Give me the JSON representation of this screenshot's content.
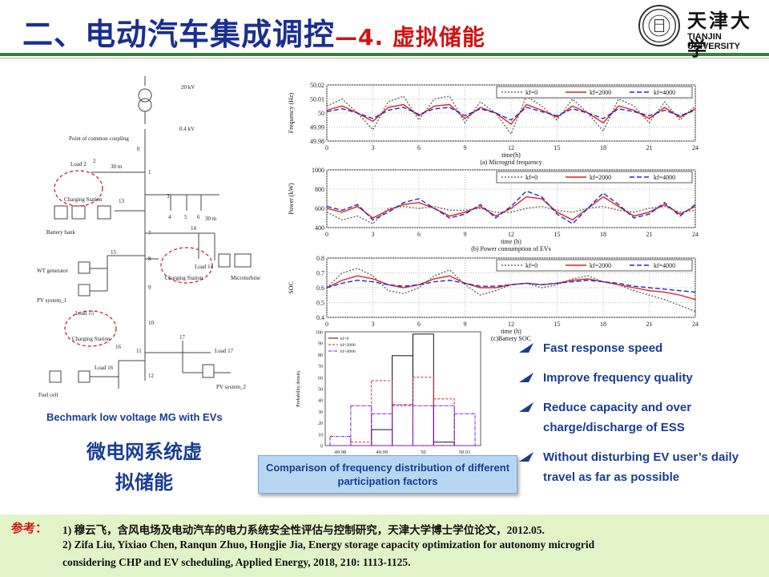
{
  "header": {
    "title": "二、电动汽车集成调控",
    "subtitle": "—4. 虚拟储能",
    "university_cn": "天津大学",
    "university_en": "TIANJIN UNIVERSITY",
    "accent_color": "#1a2f8f",
    "sub_color": "#d01414"
  },
  "schematic": {
    "caption": "Bechmark  low voltage MG with EVs",
    "labels": {
      "kv20": "20 kV",
      "kv04": "0.4 kV",
      "pcc": "Point of common coupling",
      "load2": "Load 2",
      "m30a": "30 m",
      "m30b": "30 m",
      "cs1": "Charging Station",
      "battery": "Battery bank",
      "load14": "Load 14",
      "cs2": "Charging Station",
      "microturbine": "Microturbine",
      "wt": "WT generator",
      "pv1": "PV system_1",
      "load15": "Load 15",
      "cs3": "Charging Station",
      "load17": "Load 17",
      "load16": "Load 16",
      "fuel": "Fuel cell",
      "pv2": "PV system_2"
    },
    "nodes": [
      "0",
      "1",
      "2",
      "3",
      "4",
      "5",
      "6",
      "7",
      "8",
      "9",
      "10",
      "11",
      "12",
      "13",
      "14",
      "15",
      "16",
      "17"
    ]
  },
  "cn_label_1": "微电网系统虚",
  "cn_label_2": "拟储能",
  "chart_data": [
    {
      "type": "line",
      "title": "(a) Microgrid frequency",
      "xlabel": "time(h)",
      "ylabel": "Frequency (Hz)",
      "xlim": [
        0,
        24
      ],
      "ylim": [
        49.98,
        50.02
      ],
      "xticks": [
        "0",
        "3",
        "6",
        "9",
        "12",
        "15",
        "18",
        "21",
        "24"
      ],
      "yticks": [
        "49.98",
        "49.99",
        "50",
        "50.01",
        "50.02"
      ],
      "legend_position": "top-right",
      "x": [
        0,
        1,
        2,
        3,
        4,
        5,
        6,
        7,
        8,
        9,
        10,
        11,
        12,
        13,
        14,
        15,
        16,
        17,
        18,
        19,
        20,
        21,
        22,
        23,
        24
      ],
      "series": [
        {
          "name": "kf=0",
          "color": "#666666",
          "dash": "2,2",
          "values": [
            50.005,
            50.01,
            50.0,
            49.988,
            50.008,
            50.012,
            49.995,
            50.01,
            50.012,
            49.993,
            50.008,
            50.0,
            49.985,
            50.012,
            50.005,
            49.995,
            50.01,
            50.0,
            49.987,
            50.01,
            50.005,
            49.993,
            50.008,
            49.995,
            50.005
          ]
        },
        {
          "name": "kf=2000",
          "color": "#e02020",
          "dash": "",
          "values": [
            50.002,
            50.005,
            50.0,
            49.994,
            50.004,
            50.006,
            49.998,
            50.005,
            50.006,
            49.996,
            50.004,
            50.0,
            49.992,
            50.006,
            50.002,
            49.997,
            50.005,
            50.0,
            49.993,
            50.005,
            50.002,
            49.996,
            50.004,
            49.997,
            50.003
          ]
        },
        {
          "name": "kf=4000",
          "color": "#1a2fc8",
          "dash": "6,3",
          "values": [
            50.001,
            50.003,
            50.0,
            49.996,
            50.002,
            50.004,
            49.999,
            50.003,
            50.004,
            49.998,
            50.003,
            50.0,
            49.995,
            50.004,
            50.001,
            49.998,
            50.003,
            50.0,
            49.996,
            50.003,
            50.001,
            49.998,
            50.002,
            49.998,
            50.002
          ]
        }
      ]
    },
    {
      "type": "line",
      "title": "(b) Power consumption of EVs",
      "xlabel": "time (h)",
      "ylabel": "Power (kW)",
      "xlim": [
        0,
        24
      ],
      "ylim": [
        400,
        1000
      ],
      "xticks": [
        "0",
        "3",
        "6",
        "9",
        "12",
        "15",
        "18",
        "21",
        "24"
      ],
      "yticks": [
        "400",
        "600",
        "800",
        "1000"
      ],
      "legend_position": "top-right",
      "x": [
        0,
        1,
        2,
        3,
        4,
        5,
        6,
        7,
        8,
        9,
        10,
        11,
        12,
        13,
        14,
        15,
        16,
        17,
        18,
        19,
        20,
        21,
        22,
        23,
        24
      ],
      "series": [
        {
          "name": "kf=0",
          "color": "#666666",
          "dash": "2,2",
          "values": [
            560,
            480,
            520,
            440,
            600,
            620,
            600,
            620,
            580,
            580,
            600,
            560,
            560,
            600,
            620,
            580,
            560,
            600,
            620,
            580,
            560,
            600,
            620,
            560,
            580
          ]
        },
        {
          "name": "kf=2000",
          "color": "#e02020",
          "dash": "",
          "values": [
            600,
            560,
            620,
            500,
            580,
            640,
            660,
            600,
            520,
            560,
            620,
            520,
            600,
            720,
            700,
            560,
            480,
            600,
            720,
            620,
            520,
            560,
            640,
            540,
            620
          ]
        },
        {
          "name": "kf=4000",
          "color": "#1a2fc8",
          "dash": "6,3",
          "values": [
            620,
            580,
            640,
            480,
            560,
            660,
            700,
            600,
            500,
            540,
            640,
            500,
            620,
            780,
            720,
            540,
            440,
            600,
            760,
            640,
            500,
            540,
            660,
            520,
            640
          ]
        }
      ]
    },
    {
      "type": "line",
      "title": "(c)Battery SOC",
      "xlabel": "time (h)",
      "ylabel": "SOC",
      "xlim": [
        0,
        24
      ],
      "ylim": [
        0.4,
        0.8
      ],
      "xticks": [
        "0",
        "3",
        "6",
        "9",
        "12",
        "15",
        "18",
        "21",
        "24"
      ],
      "yticks": [
        "0.4",
        "0.5",
        "0.6",
        "0.7",
        "0.8"
      ],
      "legend_position": "top-right",
      "x": [
        0,
        1,
        2,
        3,
        4,
        5,
        6,
        7,
        8,
        9,
        10,
        11,
        12,
        13,
        14,
        15,
        16,
        17,
        18,
        19,
        20,
        21,
        22,
        23,
        24
      ],
      "series": [
        {
          "name": "kf=0",
          "color": "#666666",
          "dash": "2,2",
          "values": [
            0.6,
            0.7,
            0.73,
            0.68,
            0.58,
            0.56,
            0.6,
            0.68,
            0.72,
            0.62,
            0.55,
            0.58,
            0.62,
            0.63,
            0.6,
            0.62,
            0.66,
            0.68,
            0.64,
            0.62,
            0.58,
            0.55,
            0.52,
            0.48,
            0.44
          ]
        },
        {
          "name": "kf=2000",
          "color": "#e02020",
          "dash": "",
          "values": [
            0.6,
            0.65,
            0.68,
            0.66,
            0.62,
            0.6,
            0.62,
            0.66,
            0.68,
            0.63,
            0.6,
            0.6,
            0.62,
            0.63,
            0.62,
            0.63,
            0.65,
            0.66,
            0.64,
            0.62,
            0.6,
            0.58,
            0.57,
            0.55,
            0.52
          ]
        },
        {
          "name": "kf=4000",
          "color": "#1a2fc8",
          "dash": "6,3",
          "values": [
            0.6,
            0.63,
            0.65,
            0.64,
            0.62,
            0.61,
            0.62,
            0.64,
            0.65,
            0.63,
            0.61,
            0.61,
            0.62,
            0.63,
            0.62,
            0.63,
            0.64,
            0.65,
            0.64,
            0.63,
            0.61,
            0.6,
            0.59,
            0.58,
            0.57
          ]
        }
      ]
    },
    {
      "type": "bar",
      "title": "",
      "xlabel": "",
      "ylabel": "Probability density",
      "categories": [
        "49.98",
        "49.985",
        "49.99",
        "49.995",
        "50",
        "50.005",
        "50.01"
      ],
      "xticks": [
        "49.98",
        "49.99",
        "50",
        "50.01"
      ],
      "yticks": [
        "0",
        "10",
        "20",
        "30",
        "40",
        "50",
        "60",
        "70",
        "80",
        "90",
        "100"
      ],
      "ylim": [
        0,
        100
      ],
      "legend_position": "top-left",
      "series": [
        {
          "name": "kf=0",
          "color": "#111111",
          "values": [
            0,
            0,
            14,
            79,
            98,
            3,
            0
          ]
        },
        {
          "name": "kf=2000",
          "color": "#e02020",
          "values": [
            0,
            3,
            57,
            35,
            60,
            41,
            0
          ]
        },
        {
          "name": "kf=4000",
          "color": "#7a1ad0",
          "values": [
            8,
            35,
            28,
            36,
            35,
            35,
            28
          ]
        }
      ]
    }
  ],
  "hist_caption": "Comparison of frequency distribution of different participation factors",
  "bullets": [
    "Fast response speed",
    "Improve frequency quality",
    "Reduce capacity and over charge/discharge of ESS",
    "Without disturbing EV user’s daily travel as far as possible"
  ],
  "refs": {
    "label": "参考：",
    "line1": "1) 穆云飞，含风电场及电动汽车的电力系统安全性评估与控制研究，天津大学博士学位论文，2012.05.",
    "line2": "2) Zifa Liu, Yixiao Chen, Ranqun Zhuo, Hongjie Jia, Energy storage capacity optimization for autonomy microgrid",
    "line3": "considering CHP and EV scheduling, Applied Energy, 2018, 210: 1113-1125."
  }
}
